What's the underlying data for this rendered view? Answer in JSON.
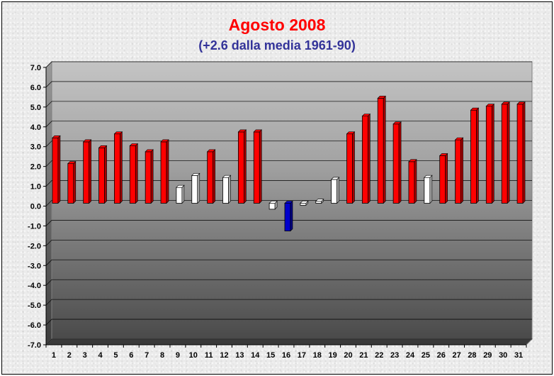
{
  "chart_data": {
    "type": "bar",
    "title": "Agosto 2008",
    "subtitle": "(+2.6 dalla media 1961-90)",
    "xlabel": "",
    "ylabel": "",
    "ylim": [
      -7.0,
      7.0
    ],
    "y_ticks": [
      "7.0",
      "6.0",
      "5.0",
      "4.0",
      "3.0",
      "2.0",
      "1.0",
      "0.0",
      "-1.0",
      "-2.0",
      "-3.0",
      "-4.0",
      "-5.0",
      "-6.0",
      "-7.0"
    ],
    "grid": true,
    "legend": "none",
    "categories": [
      "1",
      "2",
      "3",
      "4",
      "5",
      "6",
      "7",
      "8",
      "9",
      "10",
      "11",
      "12",
      "13",
      "14",
      "15",
      "16",
      "17",
      "18",
      "19",
      "20",
      "21",
      "22",
      "23",
      "24",
      "25",
      "26",
      "27",
      "28",
      "29",
      "30",
      "31"
    ],
    "values": [
      3.3,
      2.0,
      3.1,
      2.8,
      3.5,
      2.9,
      2.6,
      3.1,
      0.8,
      1.4,
      2.6,
      1.3,
      3.6,
      3.6,
      -0.3,
      -1.4,
      -0.1,
      0.1,
      1.2,
      3.5,
      4.4,
      5.3,
      4.0,
      2.1,
      1.3,
      2.4,
      3.2,
      4.7,
      4.9,
      5.0,
      5.0
    ],
    "colors": {
      "warm": "#ff0000",
      "cold": "#0000cc",
      "neutral": "#ffffff",
      "title": "#ff0000",
      "subtitle": "#333399"
    }
  }
}
